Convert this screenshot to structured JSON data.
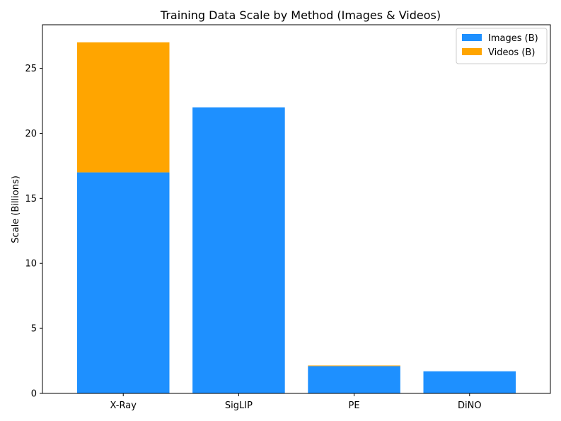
{
  "chart_data": {
    "type": "bar",
    "stacked": true,
    "title": "Training Data Scale by Method (Images & Videos)",
    "xlabel": "",
    "ylabel": "Scale (Billions)",
    "categories": [
      "X-Ray",
      "SigLIP",
      "PE",
      "DiNO"
    ],
    "series": [
      {
        "name": "Images (B)",
        "values": [
          17,
          22,
          2.1,
          1.7
        ],
        "color": "#1E90FF"
      },
      {
        "name": "Videos (B)",
        "values": [
          10,
          0,
          0.05,
          0
        ],
        "color": "#FFA500"
      }
    ],
    "ylim": [
      0,
      28.35
    ],
    "yticks": [
      0,
      5,
      10,
      15,
      20,
      25
    ],
    "grid": false,
    "legend_position": "top-right"
  }
}
